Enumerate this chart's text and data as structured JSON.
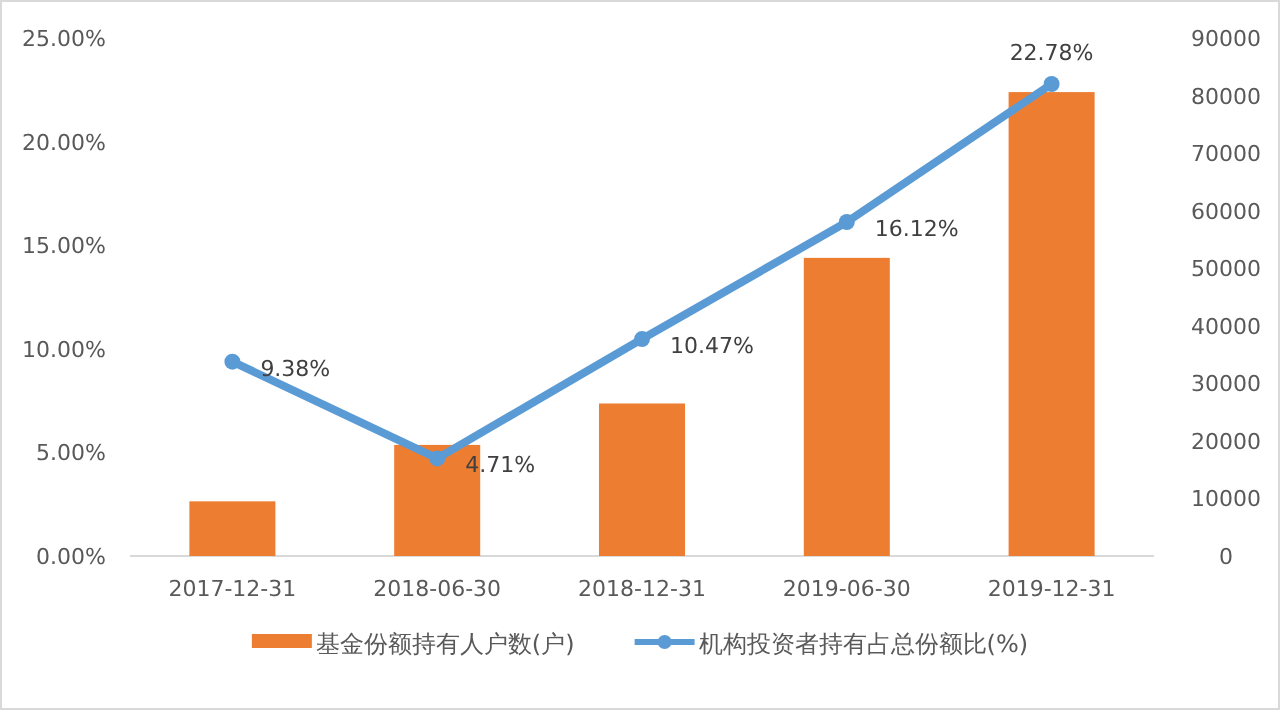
{
  "chart_data": {
    "type": "bar",
    "categories": [
      "2017-12-31",
      "2018-06-30",
      "2018-12-31",
      "2019-06-30",
      "2019-12-31"
    ],
    "series": [
      {
        "name": "基金份额持有人户数(户)",
        "color": "#ed7d31",
        "axis": "y2",
        "values": [
          9500,
          19300,
          26500,
          51800,
          80600
        ]
      },
      {
        "name": "机构投资者持有占总份额比(%)",
        "type": "line",
        "color": "#5b9bd5",
        "marker": "circle",
        "axis": "y",
        "values": [
          9.38,
          4.71,
          10.47,
          16.12,
          22.78
        ],
        "value_labels": [
          "9.38%",
          "4.71%",
          "10.47%",
          "16.12%",
          "22.78%"
        ]
      }
    ],
    "ylim": [
      0,
      25
    ],
    "yticks": [
      {
        "value": 0,
        "label": "0.00%"
      },
      {
        "value": 5,
        "label": "5.00%"
      },
      {
        "value": 10,
        "label": "10.00%"
      },
      {
        "value": 15,
        "label": "15.00%"
      },
      {
        "value": 20,
        "label": "20.00%"
      },
      {
        "value": 25,
        "label": "25.00%"
      }
    ],
    "y2lim": [
      0,
      90000
    ],
    "y2ticks": [
      0,
      10000,
      20000,
      30000,
      40000,
      50000,
      60000,
      70000,
      80000,
      90000
    ],
    "legend": "bottom"
  }
}
